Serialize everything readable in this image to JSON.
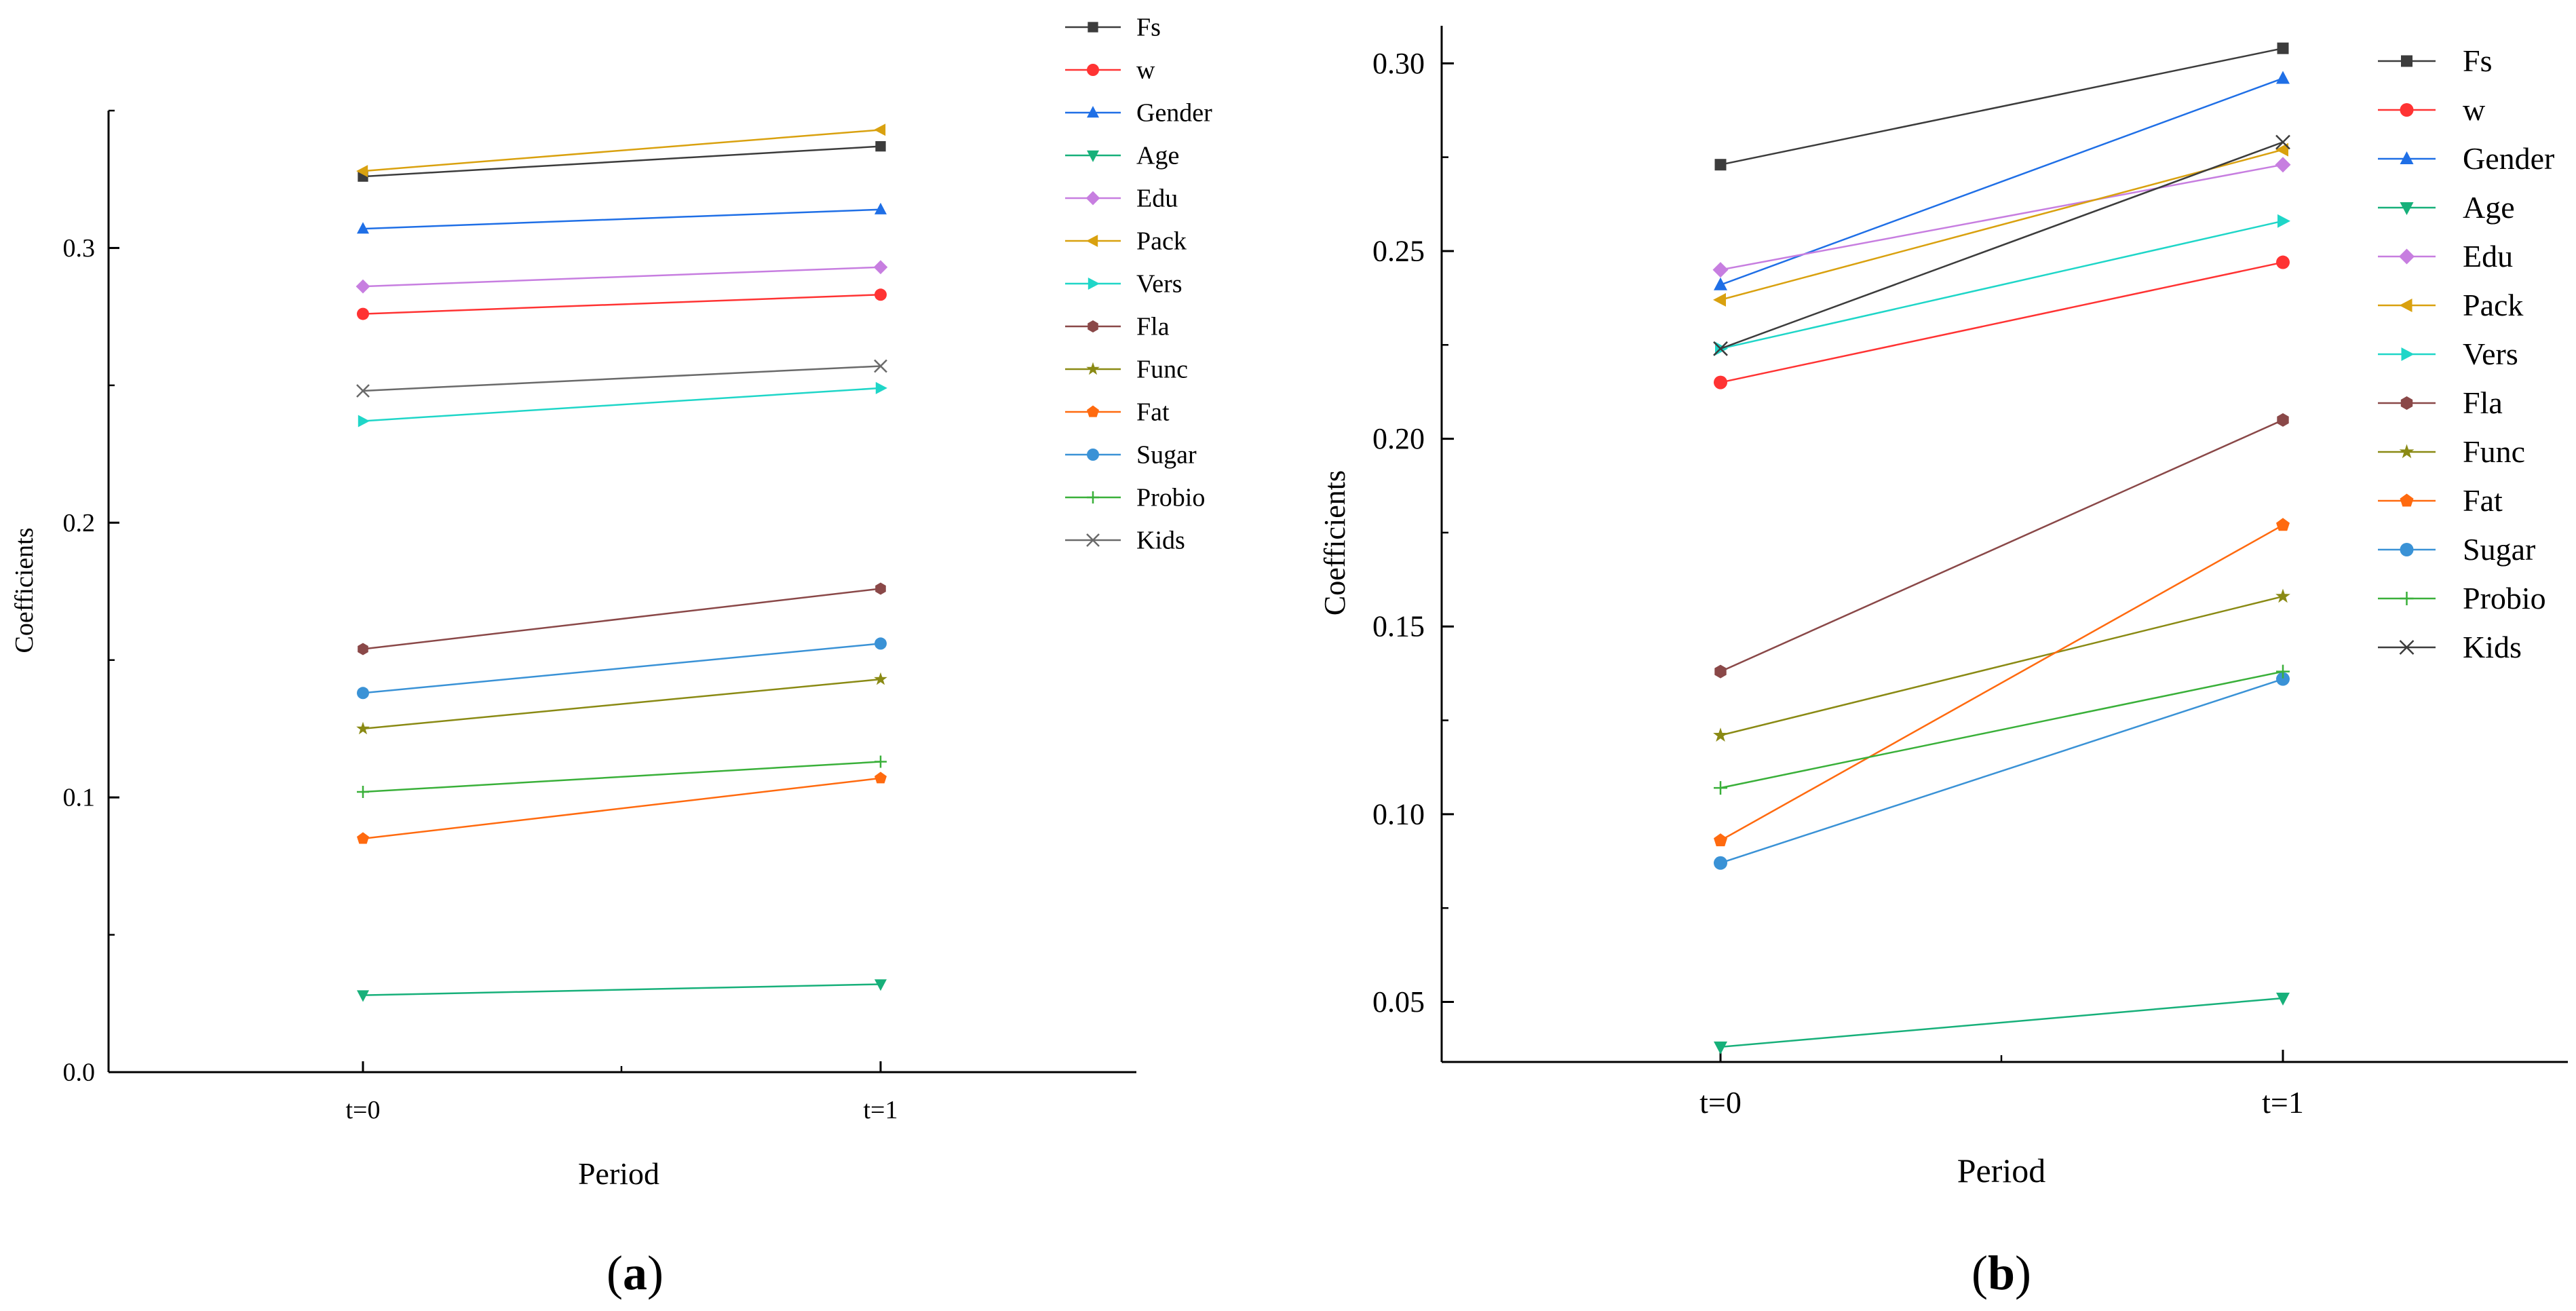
{
  "figure": {
    "panels": [
      {
        "id": "a",
        "caption": "a"
      },
      {
        "id": "b",
        "caption": "b"
      }
    ]
  },
  "chart_data": [
    {
      "type": "line",
      "panel": "a",
      "title": "",
      "xlabel": "Period",
      "ylabel": "Coefficients",
      "categories": [
        "t=0",
        "t=1"
      ],
      "ylim": [
        0.0,
        0.35
      ],
      "yticks": [
        0.0,
        0.1,
        0.2,
        0.3
      ],
      "yticklabels": [
        "0.0",
        "0.1",
        "0.2",
        "0.3"
      ],
      "grid": false,
      "legend_position": "top-right",
      "series": [
        {
          "name": "Fs",
          "values": [
            0.326,
            0.337
          ],
          "color": "#3c3c3c",
          "marker": "square"
        },
        {
          "name": "w",
          "values": [
            0.276,
            0.283
          ],
          "color": "#ff3333",
          "marker": "circle"
        },
        {
          "name": "Gender",
          "values": [
            0.307,
            0.314
          ],
          "color": "#1f6fe6",
          "marker": "triangle-up"
        },
        {
          "name": "Age",
          "values": [
            0.028,
            0.032
          ],
          "color": "#17b07a",
          "marker": "triangle-down"
        },
        {
          "name": "Edu",
          "values": [
            0.286,
            0.293
          ],
          "color": "#c77ee0",
          "marker": "diamond"
        },
        {
          "name": "Pack",
          "values": [
            0.328,
            0.343
          ],
          "color": "#d9a10f",
          "marker": "triangle-left"
        },
        {
          "name": "Vers",
          "values": [
            0.237,
            0.249
          ],
          "color": "#1fd6c8",
          "marker": "triangle-right"
        },
        {
          "name": "Fla",
          "values": [
            0.154,
            0.176
          ],
          "color": "#8a4848",
          "marker": "hexagon"
        },
        {
          "name": "Func",
          "values": [
            0.125,
            0.143
          ],
          "color": "#8a8a14",
          "marker": "star"
        },
        {
          "name": "Fat",
          "values": [
            0.085,
            0.107
          ],
          "color": "#ff6a0f",
          "marker": "pentagon"
        },
        {
          "name": "Sugar",
          "values": [
            0.138,
            0.156
          ],
          "color": "#3a92d6",
          "marker": "sphere"
        },
        {
          "name": "Probio",
          "values": [
            0.102,
            0.113
          ],
          "color": "#3ab03a",
          "marker": "plus"
        },
        {
          "name": "Kids",
          "values": [
            0.248,
            0.257
          ],
          "color": "#6a6a6a",
          "marker": "x"
        }
      ]
    },
    {
      "type": "line",
      "panel": "b",
      "title": "",
      "xlabel": "Period",
      "ylabel": "Coefficients",
      "categories": [
        "t=0",
        "t=1"
      ],
      "ylim": [
        0.034,
        0.31
      ],
      "yticks": [
        0.05,
        0.1,
        0.15,
        0.2,
        0.25,
        0.3
      ],
      "yticklabels": [
        "0.05",
        "0.10",
        "0.15",
        "0.20",
        "0.25",
        "0.30"
      ],
      "grid": false,
      "legend_position": "top-right",
      "series": [
        {
          "name": "Fs",
          "values": [
            0.273,
            0.304
          ],
          "color": "#3c3c3c",
          "marker": "square"
        },
        {
          "name": "w",
          "values": [
            0.215,
            0.247
          ],
          "color": "#ff3333",
          "marker": "circle"
        },
        {
          "name": "Gender",
          "values": [
            0.241,
            0.296
          ],
          "color": "#1f6fe6",
          "marker": "triangle-up"
        },
        {
          "name": "Age",
          "values": [
            0.038,
            0.051
          ],
          "color": "#17b07a",
          "marker": "triangle-down"
        },
        {
          "name": "Edu",
          "values": [
            0.245,
            0.273
          ],
          "color": "#c77ee0",
          "marker": "diamond"
        },
        {
          "name": "Pack",
          "values": [
            0.237,
            0.277
          ],
          "color": "#d9a10f",
          "marker": "triangle-left"
        },
        {
          "name": "Vers",
          "values": [
            0.224,
            0.258
          ],
          "color": "#1fd6c8",
          "marker": "triangle-right"
        },
        {
          "name": "Fla",
          "values": [
            0.138,
            0.205
          ],
          "color": "#8a4848",
          "marker": "hexagon"
        },
        {
          "name": "Func",
          "values": [
            0.121,
            0.158
          ],
          "color": "#8a8a14",
          "marker": "star"
        },
        {
          "name": "Fat",
          "values": [
            0.093,
            0.177
          ],
          "color": "#ff6a0f",
          "marker": "pentagon"
        },
        {
          "name": "Sugar",
          "values": [
            0.087,
            0.136
          ],
          "color": "#3a92d6",
          "marker": "sphere"
        },
        {
          "name": "Probio",
          "values": [
            0.107,
            0.138
          ],
          "color": "#3ab03a",
          "marker": "plus"
        },
        {
          "name": "Kids",
          "values": [
            0.224,
            0.279
          ],
          "color": "#3c3c3c",
          "marker": "x"
        }
      ]
    }
  ]
}
